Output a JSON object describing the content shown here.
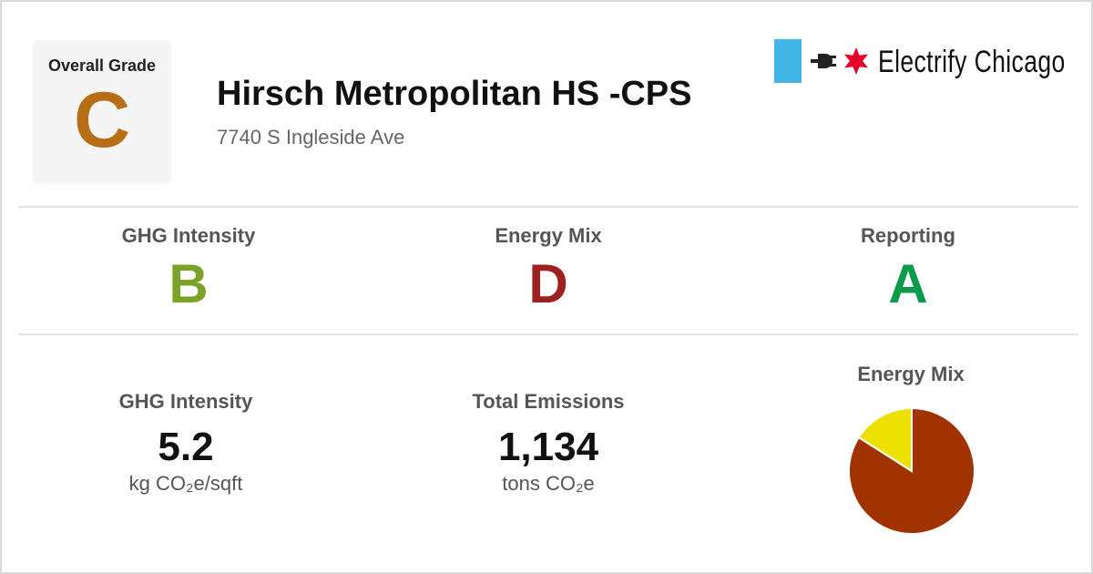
{
  "overall": {
    "label": "Overall Grade",
    "grade": "C",
    "color": "#b86e17"
  },
  "building": {
    "name": "Hirsch Metropolitan HS -CPS",
    "address": "7740 S Ingleside Ave"
  },
  "brand": {
    "name": "Electrify Chicago",
    "bar_color": "#41b6e6",
    "star_color": "#e4002b",
    "icons": [
      "plug-icon",
      "star-icon"
    ]
  },
  "grades": [
    {
      "label": "GHG Intensity",
      "grade": "B",
      "color": "#7aa229"
    },
    {
      "label": "Energy Mix",
      "grade": "D",
      "color": "#9e2020"
    },
    {
      "label": "Reporting",
      "grade": "A",
      "color": "#0c9a4b"
    }
  ],
  "metrics": [
    {
      "label": "GHG Intensity",
      "value": "5.2",
      "unit": "kg CO₂e/sqft"
    },
    {
      "label": "Total Emissions",
      "value": "1,134",
      "unit": "tons CO₂e"
    }
  ],
  "chart_data": {
    "type": "pie",
    "title": "Energy Mix",
    "slices": [
      {
        "value": 84,
        "color": "#a03300"
      },
      {
        "value": 16,
        "color": "#ece100"
      }
    ]
  }
}
